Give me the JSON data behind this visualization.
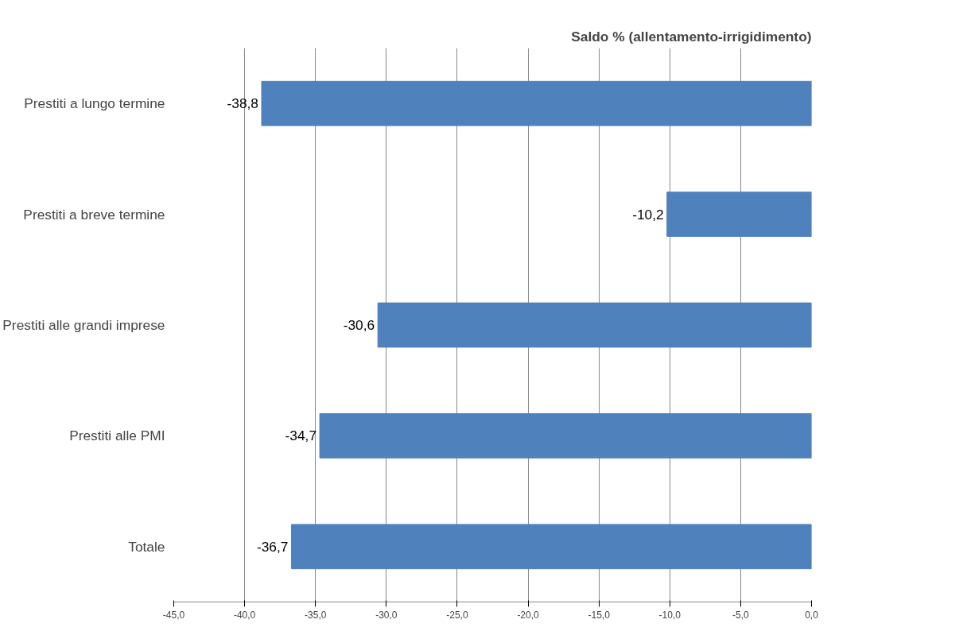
{
  "chart_data": {
    "type": "bar",
    "orientation": "horizontal",
    "title": "Saldo % (allentamento-irrigidimento)",
    "categories": [
      "Prestiti a lungo termine",
      "Prestiti a breve termine",
      "Prestiti alle grandi imprese",
      "Prestiti alle PMI",
      "Totale"
    ],
    "values": [
      -38.8,
      -10.2,
      -30.6,
      -34.7,
      -36.7
    ],
    "value_labels": [
      "-38,8",
      "-10,2",
      "-30,6",
      "-34,7",
      "-36,7"
    ],
    "color": "#4f81bd",
    "xlim": [
      -45,
      0
    ],
    "xticks": [
      {
        "value": -45,
        "label": "-45,0"
      },
      {
        "value": -40,
        "label": "-40,0"
      },
      {
        "value": -35,
        "label": "-35,0"
      },
      {
        "value": -30,
        "label": "-30,0"
      },
      {
        "value": -25,
        "label": "-25,0"
      },
      {
        "value": -20,
        "label": "-20,0"
      },
      {
        "value": -15,
        "label": "-15,0"
      },
      {
        "value": -10,
        "label": "-10,0"
      },
      {
        "value": -5,
        "label": "-5,0"
      },
      {
        "value": 0,
        "label": "0,0"
      }
    ],
    "grid": "x"
  }
}
